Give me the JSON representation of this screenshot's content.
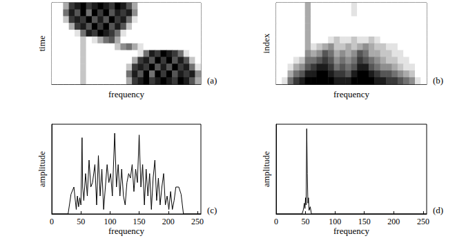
{
  "chart_data": [
    {
      "type": "heatmap",
      "panel": "(a)",
      "x_label": "frequency",
      "y_label": "time",
      "tick_labels": false,
      "x": [
        0,
        10,
        20,
        30,
        40,
        50,
        60,
        70,
        80,
        90,
        100,
        110,
        120,
        130,
        140,
        150,
        160,
        170,
        180,
        190,
        200,
        210,
        220,
        230,
        240,
        250
      ],
      "zlim": [
        0,
        9
      ],
      "z": [
        [
          0,
          0,
          3,
          7,
          8,
          9,
          7,
          8,
          9,
          8,
          7,
          9,
          8,
          6,
          3,
          0,
          0,
          0,
          0,
          0,
          0,
          0,
          0,
          0,
          0,
          0
        ],
        [
          0,
          0,
          5,
          8,
          6,
          9,
          5,
          9,
          7,
          9,
          6,
          8,
          7,
          8,
          4,
          0,
          0,
          0,
          0,
          0,
          0,
          0,
          0,
          0,
          0,
          0
        ],
        [
          0,
          0,
          2,
          7,
          8,
          7,
          9,
          6,
          8,
          6,
          9,
          7,
          8,
          5,
          1,
          0,
          0,
          0,
          0,
          0,
          0,
          0,
          0,
          0,
          0,
          0
        ],
        [
          0,
          0,
          0,
          3,
          7,
          8,
          6,
          9,
          7,
          9,
          6,
          8,
          6,
          2,
          0,
          0,
          0,
          0,
          0,
          0,
          0,
          0,
          0,
          0,
          0,
          0
        ],
        [
          0,
          0,
          0,
          0,
          1,
          5,
          8,
          7,
          9,
          8,
          7,
          5,
          1,
          0,
          0,
          0,
          0,
          0,
          0,
          0,
          0,
          0,
          0,
          0,
          0,
          0
        ],
        [
          0,
          0,
          0,
          0,
          0,
          2,
          0,
          1,
          3,
          5,
          6,
          3,
          0,
          0,
          0,
          0,
          0,
          0,
          0,
          0,
          0,
          0,
          0,
          0,
          0,
          0
        ],
        [
          0,
          0,
          0,
          0,
          0,
          2,
          0,
          0,
          0,
          0,
          0,
          2,
          4,
          5,
          3,
          1,
          0,
          0,
          0,
          0,
          0,
          0,
          0,
          0,
          0,
          0
        ],
        [
          0,
          0,
          0,
          0,
          0,
          2,
          0,
          0,
          0,
          0,
          0,
          0,
          0,
          0,
          0,
          1,
          5,
          8,
          7,
          9,
          8,
          7,
          5,
          1,
          0,
          0
        ],
        [
          0,
          0,
          0,
          0,
          0,
          2,
          0,
          0,
          0,
          0,
          0,
          0,
          0,
          0,
          3,
          7,
          8,
          6,
          9,
          7,
          9,
          6,
          8,
          6,
          2,
          0
        ],
        [
          0,
          0,
          0,
          0,
          0,
          2,
          0,
          0,
          0,
          0,
          0,
          0,
          0,
          2,
          7,
          8,
          7,
          9,
          6,
          8,
          6,
          9,
          7,
          8,
          5,
          1
        ],
        [
          0,
          0,
          0,
          0,
          0,
          2,
          0,
          0,
          0,
          0,
          0,
          0,
          0,
          5,
          8,
          6,
          9,
          5,
          9,
          7,
          9,
          6,
          8,
          7,
          8,
          4
        ],
        [
          0,
          0,
          0,
          0,
          0,
          2,
          0,
          0,
          0,
          0,
          0,
          0,
          0,
          3,
          7,
          8,
          9,
          7,
          8,
          9,
          8,
          7,
          9,
          8,
          6,
          3
        ]
      ]
    },
    {
      "type": "heatmap",
      "panel": "(b)",
      "x_label": "frequency",
      "y_label": "index",
      "tick_labels": false,
      "x": [
        0,
        10,
        20,
        30,
        40,
        50,
        60,
        70,
        80,
        90,
        100,
        110,
        120,
        130,
        140,
        150,
        160,
        170,
        180,
        190,
        200,
        210,
        220,
        230,
        240,
        250
      ],
      "zlim": [
        0,
        9
      ],
      "z": [
        [
          0,
          0,
          0,
          0,
          0,
          3,
          0,
          0,
          0,
          0,
          0,
          0,
          0,
          1,
          0,
          0,
          0,
          0,
          0,
          0,
          0,
          0,
          0,
          0,
          0,
          0
        ],
        [
          0,
          0,
          0,
          0,
          0,
          3,
          0,
          0,
          0,
          0,
          0,
          0,
          0,
          1,
          0,
          0,
          0,
          0,
          0,
          0,
          0,
          0,
          0,
          0,
          0,
          0
        ],
        [
          0,
          0,
          0,
          0,
          0,
          3,
          0,
          0,
          0,
          0,
          0,
          0,
          0,
          0,
          0,
          0,
          0,
          0,
          0,
          0,
          0,
          0,
          0,
          0,
          0,
          0
        ],
        [
          0,
          0,
          0,
          0,
          0,
          3,
          0,
          0,
          0,
          0,
          0,
          0,
          0,
          0,
          0,
          0,
          0,
          0,
          0,
          0,
          0,
          0,
          0,
          0,
          0,
          0
        ],
        [
          0,
          0,
          0,
          0,
          0,
          3,
          0,
          0,
          0,
          0,
          0,
          0,
          0,
          0,
          0,
          0,
          0,
          0,
          0,
          0,
          0,
          0,
          0,
          0,
          0,
          0
        ],
        [
          0,
          0,
          0,
          0,
          0,
          3,
          0,
          0,
          0,
          1,
          2,
          1,
          1,
          2,
          1,
          1,
          2,
          1,
          0,
          0,
          0,
          0,
          0,
          0,
          0,
          0
        ],
        [
          0,
          0,
          0,
          0,
          0,
          3,
          1,
          2,
          3,
          4,
          2,
          2,
          3,
          2,
          3,
          4,
          3,
          2,
          2,
          1,
          1,
          0,
          0,
          0,
          0,
          0
        ],
        [
          0,
          0,
          0,
          0,
          0,
          4,
          3,
          4,
          6,
          5,
          3,
          4,
          3,
          4,
          6,
          5,
          3,
          3,
          2,
          2,
          1,
          1,
          0,
          0,
          0,
          0
        ],
        [
          0,
          0,
          0,
          1,
          2,
          5,
          5,
          6,
          7,
          6,
          4,
          5,
          4,
          5,
          7,
          6,
          5,
          4,
          3,
          2,
          2,
          1,
          1,
          0,
          0,
          0
        ],
        [
          0,
          0,
          1,
          3,
          4,
          6,
          7,
          8,
          8,
          7,
          5,
          6,
          5,
          6,
          8,
          8,
          6,
          5,
          4,
          4,
          3,
          2,
          1,
          1,
          0,
          0
        ],
        [
          0,
          0,
          3,
          5,
          6,
          8,
          8,
          9,
          9,
          8,
          7,
          7,
          6,
          8,
          9,
          9,
          8,
          7,
          6,
          6,
          5,
          4,
          3,
          2,
          0,
          0
        ],
        [
          0,
          1,
          5,
          7,
          8,
          9,
          9,
          9,
          9,
          9,
          8,
          8,
          8,
          9,
          9,
          9,
          9,
          8,
          8,
          7,
          7,
          6,
          5,
          4,
          1,
          0
        ]
      ]
    },
    {
      "type": "line",
      "panel": "(c)",
      "x_label": "frequency",
      "y_label": "amplitude",
      "tick_labels": "x",
      "color": "#000000",
      "xlim": [
        0,
        256
      ],
      "ylim": [
        0,
        1
      ],
      "xticks": [
        0,
        50,
        100,
        150,
        200,
        250
      ],
      "x": [
        0,
        28,
        33,
        38,
        42,
        44,
        46,
        48,
        50,
        52,
        53,
        55,
        58,
        61,
        64,
        67,
        70,
        74,
        77,
        80,
        83,
        86,
        89,
        92,
        95,
        98,
        101,
        104,
        108,
        111,
        114,
        117,
        120,
        123,
        126,
        129,
        132,
        135,
        138,
        141,
        144,
        147,
        150,
        153,
        156,
        159,
        162,
        165,
        168,
        171,
        174,
        177,
        180,
        183,
        186,
        189,
        192,
        195,
        198,
        201,
        204,
        207,
        210,
        213,
        218,
        222,
        226,
        256
      ],
      "values": [
        0,
        0,
        0.22,
        0.3,
        0.05,
        0.2,
        0.08,
        0.18,
        0.1,
        0.85,
        0.3,
        0.15,
        0.45,
        0.2,
        0.6,
        0.3,
        0.35,
        0.55,
        0.1,
        0.65,
        0.2,
        0.5,
        0.05,
        0.3,
        0.55,
        0.35,
        0.45,
        0.2,
        0.9,
        0.3,
        0.55,
        0.2,
        0.5,
        0.2,
        0.1,
        0.35,
        0.45,
        0.4,
        0.55,
        0.25,
        0.5,
        0.35,
        0.88,
        0.3,
        0.55,
        0.1,
        0.5,
        0.2,
        0.45,
        0.05,
        0.4,
        0.6,
        0.15,
        0.4,
        0.1,
        0.3,
        0.45,
        0.1,
        0.2,
        0.05,
        0.25,
        0.05,
        0.15,
        0.3,
        0.3,
        0.22,
        0,
        0
      ]
    },
    {
      "type": "line",
      "panel": "(d)",
      "x_label": "frequency",
      "y_label": "amplitude",
      "tick_labels": "x",
      "color": "#000000",
      "xlim": [
        0,
        256
      ],
      "ylim": [
        0,
        1
      ],
      "xticks": [
        0,
        50,
        100,
        150,
        200,
        250
      ],
      "x": [
        0,
        44,
        46,
        48,
        49,
        50,
        51,
        52,
        53,
        54,
        55,
        56,
        58,
        60,
        256
      ],
      "values": [
        0,
        0,
        0.04,
        0.12,
        0.06,
        0.18,
        0.1,
        0.95,
        0.45,
        0.12,
        0.18,
        0.04,
        0.08,
        0,
        0
      ]
    }
  ]
}
